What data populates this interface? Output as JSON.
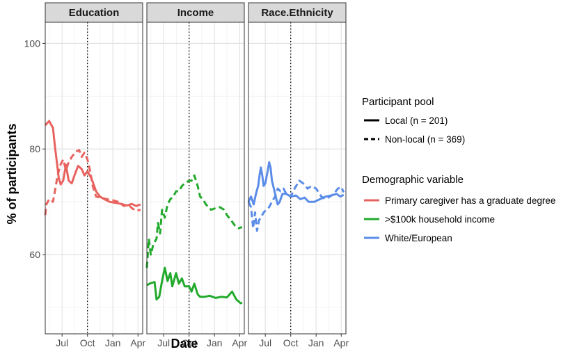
{
  "chart_data": {
    "type": "line",
    "xlabel": "Date",
    "ylabel": "% of participants",
    "ylim": [
      45,
      104
    ],
    "yticks": [
      60,
      80,
      100
    ],
    "x_range": [
      "2019-05-01",
      "2020-04-18"
    ],
    "xticks": [
      {
        "date": "2019-07-01",
        "label": "Jul"
      },
      {
        "date": "2019-10-01",
        "label": "Oct"
      },
      {
        "date": "2020-01-01",
        "label": "Jan"
      },
      {
        "date": "2020-04-01",
        "label": "Apr"
      }
    ],
    "reference_line": {
      "date": "2019-10-01",
      "style": "dotted"
    },
    "grid": true,
    "facets": [
      "Education",
      "Income",
      "Race.Ethnicity"
    ],
    "legend": {
      "placement": "right",
      "linetype_title": "Participant pool",
      "linetypes": [
        {
          "name": "Local (n = 201)",
          "style": "solid"
        },
        {
          "name": "Non-local (n = 369)",
          "style": "dashed"
        }
      ],
      "color_title": "Demographic variable",
      "colors": [
        {
          "name": "Primary caregiver has a graduate degree",
          "color": "#e8635f"
        },
        {
          "name": ">$100k household income",
          "color": "#22aa2c"
        },
        {
          "name": "White/European",
          "color": "#5b8de8"
        }
      ]
    },
    "series": [
      {
        "facet": "Education",
        "pool": "Local (n = 201)",
        "color": "#e8635f",
        "points": [
          [
            "2019-05-01",
            84.5
          ],
          [
            "2019-05-15",
            85.3
          ],
          [
            "2019-05-29",
            84.0
          ],
          [
            "2019-06-05",
            80.5
          ],
          [
            "2019-06-12",
            77.5
          ],
          [
            "2019-06-19",
            74.5
          ],
          [
            "2019-06-26",
            73.3
          ],
          [
            "2019-07-05",
            74.0
          ],
          [
            "2019-07-15",
            77.0
          ],
          [
            "2019-07-25",
            74.0
          ],
          [
            "2019-08-05",
            73.5
          ],
          [
            "2019-08-15",
            75.0
          ],
          [
            "2019-08-28",
            76.8
          ],
          [
            "2019-09-10",
            76.2
          ],
          [
            "2019-09-20",
            75.0
          ],
          [
            "2019-10-01",
            75.8
          ],
          [
            "2019-10-15",
            74.5
          ],
          [
            "2019-11-01",
            72.0
          ],
          [
            "2019-11-15",
            71.0
          ],
          [
            "2019-12-01",
            70.5
          ],
          [
            "2019-12-20",
            70.0
          ],
          [
            "2020-01-10",
            69.8
          ],
          [
            "2020-02-01",
            69.6
          ],
          [
            "2020-02-20",
            69.3
          ],
          [
            "2020-03-10",
            69.6
          ],
          [
            "2020-03-25",
            69.2
          ],
          [
            "2020-04-10",
            69.5
          ]
        ]
      },
      {
        "facet": "Education",
        "pool": "Non-local (n = 369)",
        "color": "#e8635f",
        "points": [
          [
            "2019-05-01",
            67.5
          ],
          [
            "2019-05-05",
            69.5
          ],
          [
            "2019-05-15",
            70.5
          ],
          [
            "2019-05-29",
            70.0
          ],
          [
            "2019-06-05",
            72.0
          ],
          [
            "2019-06-15",
            75.0
          ],
          [
            "2019-06-25",
            77.0
          ],
          [
            "2019-07-05",
            78.0
          ],
          [
            "2019-07-15",
            76.0
          ],
          [
            "2019-07-25",
            77.5
          ],
          [
            "2019-08-05",
            78.5
          ],
          [
            "2019-08-20",
            79.5
          ],
          [
            "2019-09-01",
            79.8
          ],
          [
            "2019-09-10",
            78.5
          ],
          [
            "2019-09-20",
            79.3
          ],
          [
            "2019-10-01",
            78.0
          ],
          [
            "2019-10-10",
            76.0
          ],
          [
            "2019-10-20",
            73.0
          ],
          [
            "2019-11-01",
            71.0
          ],
          [
            "2019-11-20",
            70.8
          ],
          [
            "2019-12-10",
            70.5
          ],
          [
            "2020-01-01",
            70.3
          ],
          [
            "2020-01-20",
            70.0
          ],
          [
            "2020-02-10",
            69.2
          ],
          [
            "2020-02-25",
            69.5
          ],
          [
            "2020-03-10",
            68.8
          ],
          [
            "2020-03-25",
            68.3
          ],
          [
            "2020-04-10",
            68.5
          ]
        ]
      },
      {
        "facet": "Income",
        "pool": "Local (n = 201)",
        "color": "#22aa2c",
        "points": [
          [
            "2019-05-01",
            54.2
          ],
          [
            "2019-05-15",
            54.6
          ],
          [
            "2019-05-29",
            54.8
          ],
          [
            "2019-06-05",
            51.5
          ],
          [
            "2019-06-15",
            52.0
          ],
          [
            "2019-06-25",
            55.0
          ],
          [
            "2019-07-05",
            57.5
          ],
          [
            "2019-07-15",
            55.0
          ],
          [
            "2019-07-25",
            56.5
          ],
          [
            "2019-08-01",
            54.0
          ],
          [
            "2019-08-15",
            56.5
          ],
          [
            "2019-08-25",
            54.5
          ],
          [
            "2019-09-05",
            55.5
          ],
          [
            "2019-09-15",
            54.0
          ],
          [
            "2019-10-01",
            54.0
          ],
          [
            "2019-10-10",
            53.0
          ],
          [
            "2019-10-20",
            54.5
          ],
          [
            "2019-11-01",
            52.5
          ],
          [
            "2019-11-10",
            52.0
          ],
          [
            "2019-11-25",
            52.0
          ],
          [
            "2019-12-15",
            52.2
          ],
          [
            "2020-01-05",
            51.8
          ],
          [
            "2020-01-25",
            52.0
          ],
          [
            "2020-02-15",
            51.9
          ],
          [
            "2020-03-05",
            53.0
          ],
          [
            "2020-03-20",
            51.5
          ],
          [
            "2020-04-05",
            50.8
          ],
          [
            "2020-04-10",
            50.9
          ]
        ]
      },
      {
        "facet": "Income",
        "pool": "Non-local (n = 369)",
        "color": "#22aa2c",
        "points": [
          [
            "2019-05-01",
            57.5
          ],
          [
            "2019-05-08",
            63.0
          ],
          [
            "2019-05-15",
            60.0
          ],
          [
            "2019-05-25",
            62.0
          ],
          [
            "2019-06-05",
            63.0
          ],
          [
            "2019-06-10",
            66.0
          ],
          [
            "2019-06-18",
            64.0
          ],
          [
            "2019-06-25",
            68.5
          ],
          [
            "2019-07-05",
            67.0
          ],
          [
            "2019-07-15",
            69.5
          ],
          [
            "2019-07-25",
            70.5
          ],
          [
            "2019-08-05",
            71.0
          ],
          [
            "2019-08-15",
            72.0
          ],
          [
            "2019-08-25",
            72.0
          ],
          [
            "2019-09-05",
            73.0
          ],
          [
            "2019-09-15",
            73.5
          ],
          [
            "2019-10-01",
            74.0
          ],
          [
            "2019-10-10",
            74.0
          ],
          [
            "2019-10-20",
            75.0
          ],
          [
            "2019-11-01",
            73.0
          ],
          [
            "2019-11-10",
            71.0
          ],
          [
            "2019-11-20",
            70.5
          ],
          [
            "2019-12-01",
            69.5
          ],
          [
            "2019-12-10",
            69.0
          ],
          [
            "2019-12-20",
            68.5
          ],
          [
            "2020-01-05",
            68.8
          ],
          [
            "2020-01-20",
            69.0
          ],
          [
            "2020-02-05",
            68.5
          ],
          [
            "2020-02-15",
            67.5
          ],
          [
            "2020-03-01",
            66.5
          ],
          [
            "2020-03-15",
            65.5
          ],
          [
            "2020-03-28",
            65.0
          ],
          [
            "2020-04-10",
            65.2
          ]
        ]
      },
      {
        "facet": "Race.Ethnicity",
        "pool": "Local (n = 201)",
        "color": "#5b8de8",
        "points": [
          [
            "2019-05-01",
            70.0
          ],
          [
            "2019-05-10",
            71.0
          ],
          [
            "2019-05-20",
            69.5
          ],
          [
            "2019-05-28",
            71.5
          ],
          [
            "2019-06-05",
            73.0
          ],
          [
            "2019-06-10",
            75.0
          ],
          [
            "2019-06-15",
            76.5
          ],
          [
            "2019-06-20",
            75.0
          ],
          [
            "2019-06-25",
            73.0
          ],
          [
            "2019-07-01",
            73.5
          ],
          [
            "2019-07-10",
            76.0
          ],
          [
            "2019-07-15",
            77.5
          ],
          [
            "2019-07-20",
            76.5
          ],
          [
            "2019-07-25",
            74.0
          ],
          [
            "2019-08-01",
            72.5
          ],
          [
            "2019-08-10",
            70.5
          ],
          [
            "2019-08-15",
            69.5
          ],
          [
            "2019-08-22",
            70.0
          ],
          [
            "2019-09-01",
            71.5
          ],
          [
            "2019-09-15",
            71.5
          ],
          [
            "2019-10-01",
            71.0
          ],
          [
            "2019-10-20",
            71.2
          ],
          [
            "2019-11-05",
            70.5
          ],
          [
            "2019-11-20",
            70.8
          ],
          [
            "2019-12-05",
            70.0
          ],
          [
            "2019-12-25",
            70.0
          ],
          [
            "2020-01-15",
            70.5
          ],
          [
            "2020-02-05",
            71.0
          ],
          [
            "2020-02-25",
            71.2
          ],
          [
            "2020-03-15",
            71.5
          ],
          [
            "2020-03-28",
            71.0
          ],
          [
            "2020-04-10",
            71.3
          ]
        ]
      },
      {
        "facet": "Race.Ethnicity",
        "pool": "Non-local (n = 369)",
        "color": "#5b8de8",
        "points": [
          [
            "2019-05-01",
            70.0
          ],
          [
            "2019-05-10",
            69.0
          ],
          [
            "2019-05-18",
            65.0
          ],
          [
            "2019-05-25",
            68.0
          ],
          [
            "2019-06-01",
            64.5
          ],
          [
            "2019-06-08",
            66.5
          ],
          [
            "2019-06-15",
            67.0
          ],
          [
            "2019-06-25",
            68.0
          ],
          [
            "2019-07-05",
            68.5
          ],
          [
            "2019-07-15",
            69.0
          ],
          [
            "2019-07-25",
            70.0
          ],
          [
            "2019-08-05",
            71.0
          ],
          [
            "2019-08-15",
            72.5
          ],
          [
            "2019-08-25",
            72.0
          ],
          [
            "2019-09-05",
            72.5
          ],
          [
            "2019-09-15",
            71.5
          ],
          [
            "2019-10-01",
            71.0
          ],
          [
            "2019-10-15",
            72.5
          ],
          [
            "2019-11-01",
            74.0
          ],
          [
            "2019-11-15",
            73.5
          ],
          [
            "2019-12-01",
            72.5
          ],
          [
            "2019-12-15",
            73.0
          ],
          [
            "2020-01-01",
            72.5
          ],
          [
            "2020-01-20",
            71.0
          ],
          [
            "2020-02-05",
            70.5
          ],
          [
            "2020-02-20",
            71.0
          ],
          [
            "2020-03-05",
            71.5
          ],
          [
            "2020-03-20",
            72.5
          ],
          [
            "2020-04-01",
            72.8
          ],
          [
            "2020-04-10",
            71.8
          ]
        ]
      }
    ]
  }
}
